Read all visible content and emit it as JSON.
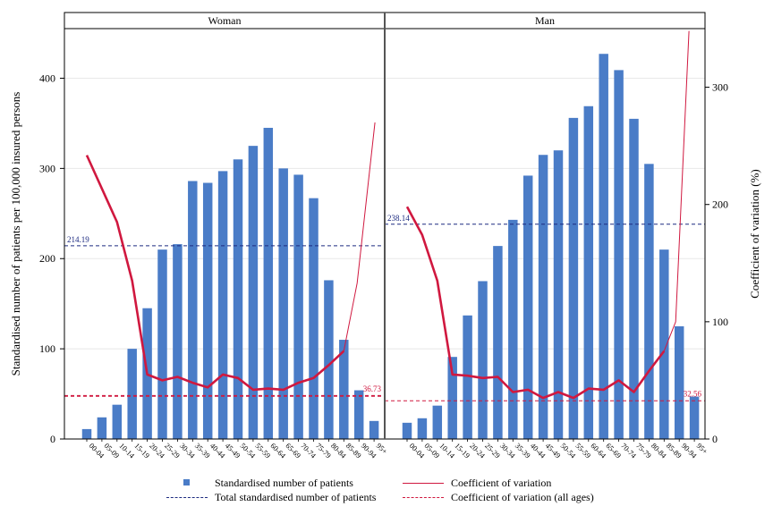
{
  "chart_data": {
    "type": "bar",
    "categories": [
      "00-04",
      "05-09",
      "10-14",
      "15-19",
      "20-24",
      "25-29",
      "30-34",
      "35-39",
      "40-44",
      "45-49",
      "50-54",
      "55-59",
      "60-64",
      "65-69",
      "70-74",
      "75-79",
      "80-84",
      "85-89",
      "90-94",
      "95+"
    ],
    "panels": [
      {
        "title": "Woman",
        "bars": [
          11,
          24,
          38,
          100,
          145,
          210,
          216,
          286,
          284,
          297,
          310,
          325,
          345,
          300,
          293,
          267,
          176,
          110,
          54,
          20
        ],
        "total": 214.19,
        "total_label": "214.19",
        "cv": [
          242,
          null,
          185,
          135,
          55,
          50,
          53,
          48,
          44,
          55,
          52,
          42,
          43,
          42,
          48,
          52,
          63,
          75,
          null,
          null
        ],
        "cv_all": 36.73,
        "cv_all_label": "36.73"
      },
      {
        "title": "Man",
        "bars": [
          18,
          23,
          37,
          91,
          137,
          175,
          214,
          243,
          292,
          315,
          320,
          356,
          369,
          427,
          409,
          355,
          305,
          210,
          125,
          47
        ],
        "total": 238.14,
        "total_label": "238.14",
        "cv": [
          198,
          174,
          135,
          55,
          54,
          52,
          53,
          40,
          42,
          35,
          40,
          35,
          43,
          42,
          50,
          40,
          58,
          75,
          null,
          null
        ],
        "cv_all": 32.56,
        "cv_all_label": "32.56"
      }
    ],
    "y_left": {
      "label": "Standardised number of patients per 100,000 insured persons",
      "range": [
        0,
        455
      ],
      "ticks": [
        0,
        100,
        200,
        300,
        400
      ]
    },
    "y_right": {
      "label": "Coefficient of variation (%)",
      "range": [
        0,
        350
      ],
      "ticks": [
        0,
        100,
        200,
        300
      ]
    },
    "legend": [
      {
        "key": "bars",
        "label": "Standardised number of patients"
      },
      {
        "key": "cv",
        "label": "Coefficient of variation"
      },
      {
        "key": "total",
        "label": "Total standardised number of patients"
      },
      {
        "key": "cv_all",
        "label": "Coefficient of variation (all ages)"
      }
    ],
    "colors": {
      "bar": "#4a7cc7",
      "cv": "#d0183f",
      "total": "#1c2a80",
      "cv_all": "#d0183f",
      "grid": "#e8e8e8"
    },
    "grid": true,
    "legend_position": "bottom"
  }
}
